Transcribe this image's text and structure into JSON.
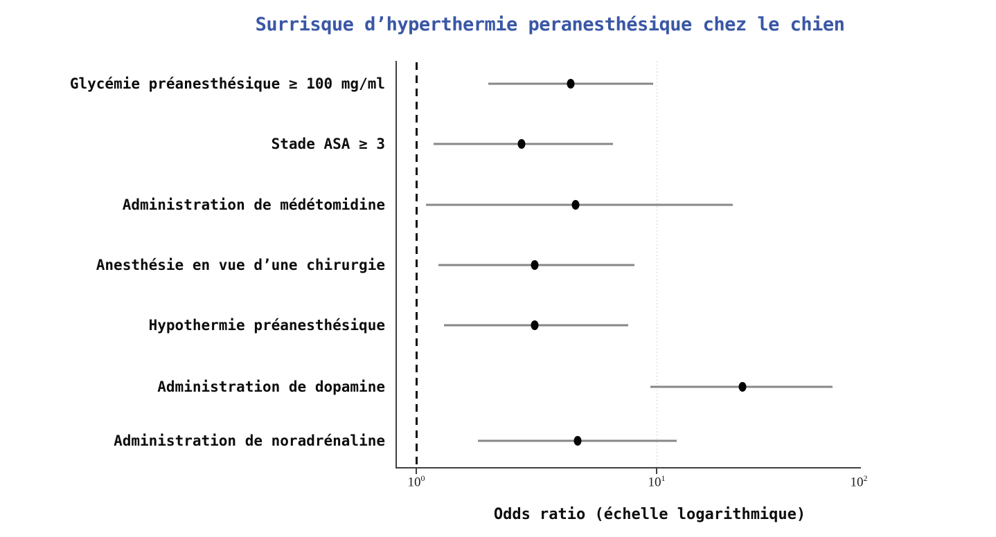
{
  "title": {
    "text": "Surrisque d’hyperthermie peranesthésique chez le chien",
    "color": "#3a57a5"
  },
  "chart_data": {
    "type": "scatter",
    "subtype": "forest-plot-horizontal-error-bars",
    "title": "Surrisque d’hyperthermie peranesthésique chez le chien",
    "xlabel": "Odds ratio (échelle logarithmique)",
    "ylabel": "",
    "x_scale": "log",
    "xlim": [
      1,
      100
    ],
    "grid": "single dotted vertical gridline at x=10",
    "reference_line": {
      "value": 1,
      "style": "dashed",
      "color": "#0a0a0a"
    },
    "gridline": {
      "value": 10,
      "style": "dotted",
      "color": "#d7d7d7"
    },
    "x_ticks": [
      {
        "value": 1,
        "base": "10",
        "exp": "0",
        "mark": true
      },
      {
        "value": 10,
        "base": "10",
        "exp": "1",
        "mark": true
      },
      {
        "value": 100,
        "base": "10",
        "exp": "2",
        "mark": false
      }
    ],
    "marker_color": "#050505",
    "ci_color": "#878787",
    "rows": [
      {
        "label": "Glycémie préanesthésique ≥ 100 mg/ml",
        "or": 4.4,
        "ci_low": 2.0,
        "ci_high": 9.7
      },
      {
        "label": "Stade ASA ≥ 3",
        "or": 2.75,
        "ci_low": 1.18,
        "ci_high": 6.6
      },
      {
        "label": "Administration de médétomidine",
        "or": 4.6,
        "ci_low": 1.1,
        "ci_high": 23.8
      },
      {
        "label": "Anesthésie en vue d’une chirurgie",
        "or": 3.1,
        "ci_low": 1.24,
        "ci_high": 8.1
      },
      {
        "label": "Hypothermie préanesthésique",
        "or": 3.1,
        "ci_low": 1.3,
        "ci_high": 7.6
      },
      {
        "label": "Administration de dopamine",
        "or": 26.6,
        "ci_low": 9.4,
        "ci_high": 74.0
      },
      {
        "label": "Administration de noradrénaline",
        "or": 4.7,
        "ci_low": 1.8,
        "ci_high": 12.6
      }
    ]
  }
}
